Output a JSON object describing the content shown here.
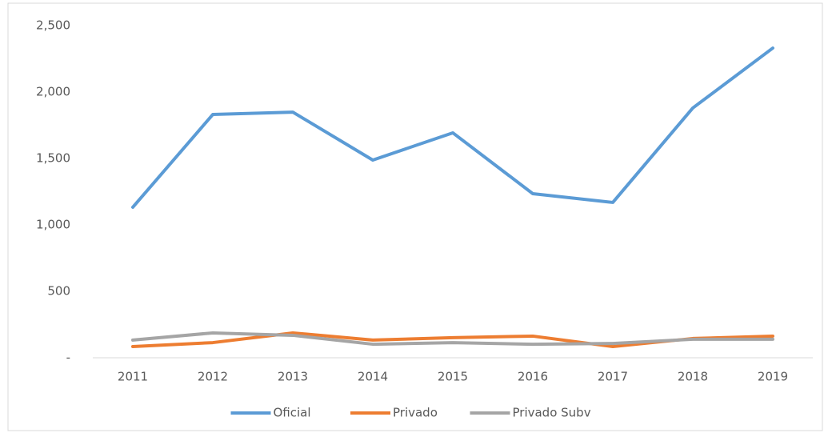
{
  "chart_data": {
    "type": "line",
    "categories": [
      "2011",
      "2012",
      "2013",
      "2014",
      "2015",
      "2016",
      "2017",
      "2018",
      "2019"
    ],
    "series": [
      {
        "name": "Oficial",
        "color": "#5b9bd5",
        "values": [
          1133,
          1831,
          1849,
          1488,
          1693,
          1235,
          1169,
          1880,
          2331
        ]
      },
      {
        "name": "Privado",
        "color": "#ed7d31",
        "values": [
          84,
          114,
          187,
          133,
          151,
          163,
          84,
          145,
          163
        ]
      },
      {
        "name": "Privado Subv",
        "color": "#a5a5a5",
        "values": [
          133,
          187,
          169,
          102,
          114,
          102,
          108,
          139,
          139
        ]
      }
    ],
    "ylim": [
      0,
      2500
    ],
    "yticks": [
      {
        "value": 0,
        "label": "-"
      },
      500,
      {
        "value": 1000,
        "label": "1,000"
      },
      {
        "value": 1500,
        "label": "1,500"
      },
      {
        "value": 2000,
        "label": "2,000"
      },
      {
        "value": 2500,
        "label": "2,500"
      }
    ],
    "grid": false,
    "legend": "bottom"
  }
}
